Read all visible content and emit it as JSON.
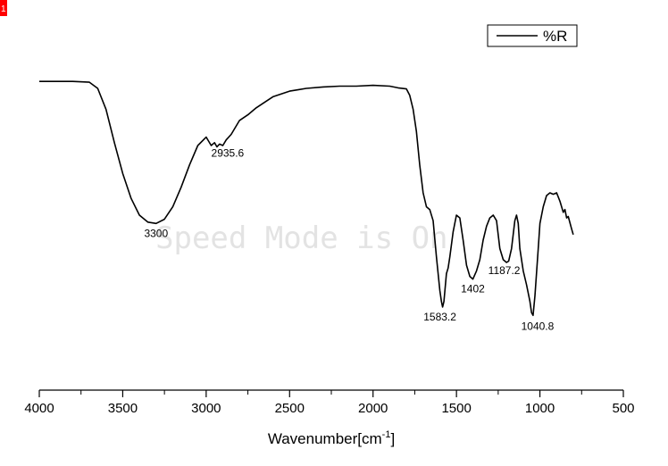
{
  "corner_marker": {
    "text": "1",
    "color": "#ff0000"
  },
  "watermark": "Speed Mode is On",
  "chart_data": {
    "type": "line",
    "title": "",
    "xlabel": "Wavenumber[cm",
    "xlabel_sup": "-1",
    "xlabel_close": "]",
    "ylabel": "",
    "xlim": [
      4000,
      500
    ],
    "x_reversed": true,
    "x_ticks": [
      4000,
      3500,
      3000,
      2500,
      2000,
      1500,
      1000,
      500
    ],
    "x_tick_labels": [
      "4000",
      "3500",
      "3000",
      "2500",
      "2000",
      "1500",
      "1000",
      "500"
    ],
    "y_axis_visible": false,
    "ylim": [
      0,
      100
    ],
    "grid": false,
    "legend": {
      "position": "top-right",
      "entries": [
        "%R"
      ]
    },
    "series": [
      {
        "name": "%R",
        "color": "#000000",
        "x": [
          4000,
          3800,
          3700,
          3650,
          3600,
          3550,
          3500,
          3450,
          3400,
          3350,
          3300,
          3250,
          3200,
          3150,
          3100,
          3050,
          3000,
          2970,
          2950,
          2935.6,
          2920,
          2900,
          2880,
          2850,
          2800,
          2750,
          2700,
          2650,
          2600,
          2550,
          2500,
          2450,
          2400,
          2300,
          2200,
          2100,
          2000,
          1900,
          1850,
          1800,
          1780,
          1760,
          1740,
          1720,
          1700,
          1680,
          1660,
          1640,
          1620,
          1600,
          1590,
          1583.2,
          1575,
          1560,
          1550,
          1540,
          1520,
          1500,
          1480,
          1460,
          1440,
          1420,
          1402,
          1380,
          1360,
          1340,
          1320,
          1300,
          1280,
          1260,
          1240,
          1220,
          1200,
          1187.2,
          1170,
          1150,
          1140,
          1130,
          1120,
          1100,
          1080,
          1060,
          1050,
          1040.8,
          1030,
          1010,
          1000,
          980,
          960,
          940,
          920,
          900,
          880,
          860,
          850,
          840,
          830,
          810,
          800
        ],
        "y": [
          90,
          90,
          89.7,
          87.5,
          80,
          68,
          57,
          48,
          42,
          39.5,
          39,
          40.5,
          45,
          52,
          60,
          67,
          70,
          67,
          68,
          66.5,
          67.5,
          67,
          69,
          71,
          76,
          78,
          80.5,
          82.5,
          84.5,
          85.5,
          86.5,
          87,
          87.5,
          88,
          88.3,
          88.3,
          88.6,
          88.3,
          87.7,
          87.3,
          85,
          80,
          72,
          60,
          50,
          45,
          44,
          40,
          27,
          15,
          11,
          9,
          11,
          21,
          23,
          27,
          36,
          42,
          41,
          33,
          24,
          20,
          19,
          22,
          26,
          33,
          38,
          41,
          42,
          40,
          30,
          26,
          25,
          25.5,
          30,
          40,
          42,
          39,
          30,
          22,
          17,
          11,
          7,
          6,
          13,
          30,
          39,
          45,
          49,
          50,
          49.5,
          50,
          47,
          43,
          44,
          41,
          41.5,
          37,
          35
        ]
      }
    ],
    "annotations": [
      {
        "text": "3300",
        "x": 3300,
        "y": 39
      },
      {
        "text": "2935.6",
        "x": 2935.6,
        "y": 66.5
      },
      {
        "text": "1583.2",
        "x": 1583.2,
        "y": 9
      },
      {
        "text": "1402",
        "x": 1402,
        "y": 19
      },
      {
        "text": "1187.2",
        "x": 1187.2,
        "y": 25
      },
      {
        "text": "1040.8",
        "x": 1040.8,
        "y": 6
      }
    ]
  }
}
